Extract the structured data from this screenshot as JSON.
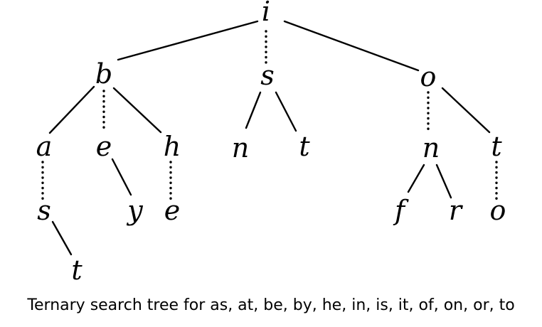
{
  "caption": "Ternary search tree for as, at, be, by, he, in, is, it, of, on, or, to",
  "nodes": [
    {
      "id": "i_root",
      "label": "i"
    },
    {
      "id": "b",
      "label": "b"
    },
    {
      "id": "s_mid",
      "label": "s"
    },
    {
      "id": "o_right",
      "label": "o"
    },
    {
      "id": "a",
      "label": "a"
    },
    {
      "id": "e_mid",
      "label": "e"
    },
    {
      "id": "h",
      "label": "h"
    },
    {
      "id": "n_left",
      "label": "n"
    },
    {
      "id": "t_s",
      "label": "t"
    },
    {
      "id": "n_o",
      "label": "n"
    },
    {
      "id": "t_o",
      "label": "t"
    },
    {
      "id": "s_a",
      "label": "s"
    },
    {
      "id": "y",
      "label": "y"
    },
    {
      "id": "e_h",
      "label": "e"
    },
    {
      "id": "f",
      "label": "f"
    },
    {
      "id": "r",
      "label": "r"
    },
    {
      "id": "o_t",
      "label": "o"
    },
    {
      "id": "t_leaf",
      "label": "t"
    }
  ],
  "edges": [
    {
      "from": "i_root",
      "to": "b",
      "style": "solid"
    },
    {
      "from": "i_root",
      "to": "s_mid",
      "style": "dotted"
    },
    {
      "from": "i_root",
      "to": "o_right",
      "style": "solid"
    },
    {
      "from": "b",
      "to": "a",
      "style": "solid"
    },
    {
      "from": "b",
      "to": "e_mid",
      "style": "dotted"
    },
    {
      "from": "b",
      "to": "h",
      "style": "solid"
    },
    {
      "from": "s_mid",
      "to": "n_left",
      "style": "solid"
    },
    {
      "from": "s_mid",
      "to": "t_s",
      "style": "solid"
    },
    {
      "from": "o_right",
      "to": "n_o",
      "style": "dotted"
    },
    {
      "from": "o_right",
      "to": "t_o",
      "style": "solid"
    },
    {
      "from": "a",
      "to": "s_a",
      "style": "dotted"
    },
    {
      "from": "e_mid",
      "to": "y",
      "style": "solid"
    },
    {
      "from": "h",
      "to": "e_h",
      "style": "dotted"
    },
    {
      "from": "n_o",
      "to": "f",
      "style": "solid"
    },
    {
      "from": "n_o",
      "to": "r",
      "style": "solid"
    },
    {
      "from": "t_o",
      "to": "o_t",
      "style": "dotted"
    },
    {
      "from": "s_a",
      "to": "t_leaf",
      "style": "solid"
    }
  ]
}
